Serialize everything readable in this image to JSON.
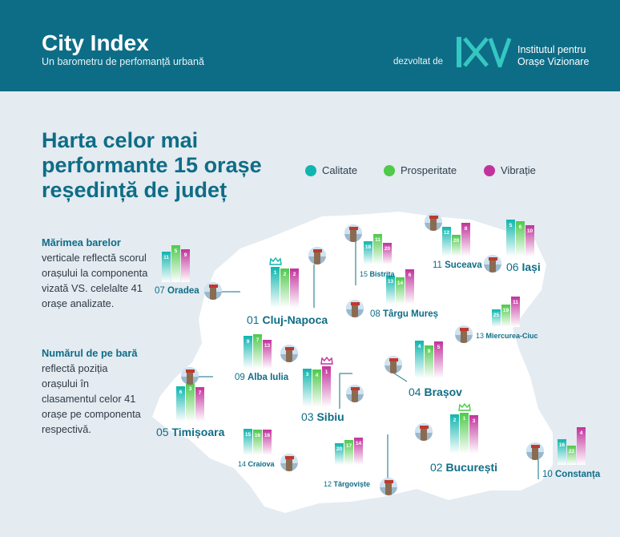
{
  "header": {
    "title": "City Index",
    "subtitle": "Un barometru de perfomanță urbană",
    "developed_by": "dezvoltat de",
    "institute_line1": "Institutul pentru",
    "institute_line2": "Orașe Vizionare",
    "colors": {
      "header_bg": "#0e6d86"
    }
  },
  "main_title": [
    "Harta celor mai",
    "performante 15 orașe",
    "reședință de județ"
  ],
  "legend": [
    {
      "label": "Calitate",
      "color": "#0fb5ae"
    },
    {
      "label": "Prosperitate",
      "color": "#4ec94a"
    },
    {
      "label": "Vibrație",
      "color": "#c2329c"
    }
  ],
  "side_text": {
    "p1_bold": "Mărimea barelor",
    "p1_rest": "verticale reflectă scorul orașului la componenta vizată VS. celelalte 41 orașe analizate.",
    "p2_bold": "Numărul de pe bară",
    "p2_rest": "reflectă poziția orașului în clasamentul celor 41 orașe pe componenta respectivă."
  },
  "chart_data": {
    "type": "bar",
    "series_names": [
      "Calitate",
      "Prosperitate",
      "Vibrație"
    ],
    "cities": [
      {
        "rank": "01",
        "name": "Cluj-Napoca",
        "values": [
          1,
          2,
          2
        ],
        "crown": true,
        "big": true
      },
      {
        "rank": "02",
        "name": "București",
        "values": [
          2,
          1,
          3
        ],
        "crown": true,
        "big": true
      },
      {
        "rank": "03",
        "name": "Sibiu",
        "values": [
          3,
          4,
          1
        ],
        "crown": true,
        "big": true
      },
      {
        "rank": "04",
        "name": "Brașov",
        "values": [
          4,
          9,
          5
        ],
        "big": true
      },
      {
        "rank": "05",
        "name": "Timișoara",
        "values": [
          6,
          3,
          7
        ],
        "big": true
      },
      {
        "rank": "06",
        "name": "Iași",
        "values": [
          5,
          6,
          10
        ],
        "big": true
      },
      {
        "rank": "07",
        "name": "Oradea",
        "values": [
          11,
          5,
          9
        ]
      },
      {
        "rank": "08",
        "name": "Târgu Mureș",
        "values": [
          13,
          14,
          6
        ]
      },
      {
        "rank": "09",
        "name": "Alba Iulia",
        "values": [
          9,
          7,
          13
        ]
      },
      {
        "rank": "10",
        "name": "Constanța",
        "values": [
          16,
          22,
          4
        ]
      },
      {
        "rank": "11",
        "name": "Suceava",
        "values": [
          12,
          20,
          8
        ]
      },
      {
        "rank": "12",
        "name": "Târgoviște",
        "values": [
          20,
          17,
          14
        ]
      },
      {
        "rank": "13",
        "name": "Miercurea-Ciuc",
        "values": [
          25,
          19,
          11
        ]
      },
      {
        "rank": "14",
        "name": "Craiova",
        "values": [
          15,
          16,
          16
        ]
      },
      {
        "rank": "15",
        "name": "Bistrița",
        "values": [
          18,
          11,
          20
        ]
      }
    ]
  }
}
